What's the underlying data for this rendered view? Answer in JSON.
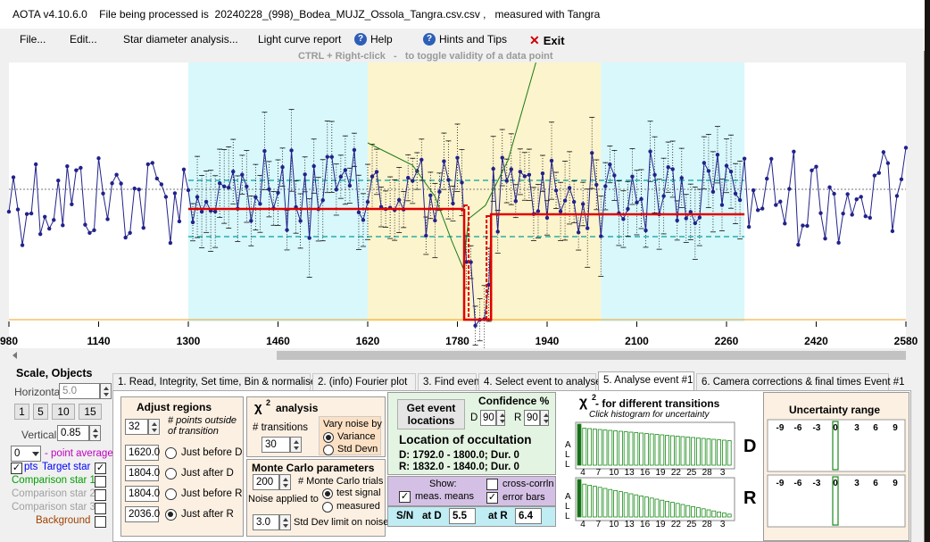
{
  "window": {
    "title": "AOTA v4.10.6.0    File being processed is  20240228_(998)_Bodea_MUJZ_Ossola_Tangra.csv.csv ,   measured with Tangra"
  },
  "menu": {
    "file": "File...",
    "edit": "Edit...",
    "star": "Star diameter analysis...",
    "lightcurve": "Light curve report",
    "help": "Help",
    "hints": "Hints and Tips",
    "exit": "Exit"
  },
  "hint": "CTRL + Right-click   -   to toggle validity of a data point",
  "plot": {
    "xticks": [
      "980",
      "1140",
      "1300",
      "1460",
      "1620",
      "1780",
      "1940",
      "2100",
      "2260",
      "2420",
      "2580"
    ],
    "regions": {
      "outside_left": [
        1300,
        1620
      ],
      "event": [
        1620,
        2036
      ],
      "outside_right": [
        2036,
        2292
      ]
    },
    "colors": {
      "outside": "#d8f8fc",
      "event": "#fcf4cc",
      "data": "#22228a",
      "model": "#e00000",
      "dashed_level": "#00a0a0",
      "green_curve": "#1a7a1a",
      "orange_line": "#f0a020"
    }
  },
  "tabs": [
    "1. Read, Integrity, Set time, Bin & normalise",
    "2. (info) Fourier plot",
    "3. Find events",
    "4. Select event to analyse",
    "5. Analyse event #1",
    "6. Camera corrections & final times Event #1"
  ],
  "scale": {
    "title": "Scale,  Objects",
    "horizontal_label": "Horizontal",
    "horizontal_value": "5.0",
    "buttons": [
      "1",
      "5",
      "10",
      "15"
    ],
    "vertical_label": "Vertical",
    "vertical_value": "0.85",
    "point_avg_value": "0",
    "point_avg_label": "- point average"
  },
  "objects": [
    {
      "label": "pts",
      "name": "Target star",
      "color": "#0000ff",
      "checked": true,
      "pts_checked": true
    },
    {
      "label": "Comparison star 1",
      "color": "#00a000",
      "checked": false
    },
    {
      "label": "Comparison star 2",
      "color": "#a0a0a0",
      "checked": false
    },
    {
      "label": "Comparison star 3",
      "color": "#a0a0a0",
      "checked": false
    },
    {
      "label": "Background",
      "color": "#a04000",
      "checked": false
    }
  ],
  "adjust": {
    "title": "Adjust regions",
    "points_value": "32",
    "points_label": "# points outside\nof transition",
    "rows": [
      {
        "value": "1620.0",
        "label": "Just before D",
        "selected": false
      },
      {
        "value": "1804.0",
        "label": "Just after D",
        "selected": false
      },
      {
        "value": "1804.0",
        "label": "Just before R",
        "selected": false
      },
      {
        "value": "2036.0",
        "label": "Just after R",
        "selected": true
      }
    ]
  },
  "chi2": {
    "title": "analysis",
    "chi": "χ",
    "sup": "2",
    "transitions_label": "# transitions",
    "transitions_value": "30",
    "vary_label": "Vary noise by",
    "variance": "Variance",
    "stddevn": "Std Devn"
  },
  "monte": {
    "title": "Monte Carlo parameters",
    "trials_value": "200",
    "trials_label": "# Monte Carlo trials",
    "noise_label": "Noise applied to",
    "test_signal": "test signal",
    "measured": "measured",
    "sd_value": "3.0",
    "sd_label": "Std Dev limit on noise"
  },
  "event": {
    "get_btn": "Get event locations",
    "confidence": "Confidence %",
    "d_label": "D",
    "d_value": "90",
    "r_label": "R",
    "r_value": "90",
    "loc_title": "Location of occultation",
    "d_line": "D: 1792.0 - 1800.0; Dur. 0",
    "r_line": "R: 1832.0 - 1840.0; Dur. 0",
    "show": "Show:",
    "meas_means": "meas. means",
    "cross_corrln": "cross-corrln",
    "error_bars": "error bars",
    "sn": "S/N",
    "at_d": "at D",
    "sn_d": "5.5",
    "at_r": "at R",
    "sn_r": "6.4"
  },
  "chi_hist": {
    "chi": "χ",
    "sup": "2",
    "title": " -  for different transitions",
    "subtitle": "Click histogram for uncertainty",
    "ticks": [
      "4",
      "7",
      "10",
      "13",
      "16",
      "19",
      "22",
      "25",
      "28",
      "3"
    ],
    "side_letters": [
      "A",
      "L",
      "L"
    ],
    "d_letter": "D",
    "r_letter": "R"
  },
  "uncert": {
    "title": "Uncertainty range",
    "ticks": [
      "-9",
      "-6",
      "-3",
      "0",
      "3",
      "6",
      "9"
    ]
  }
}
